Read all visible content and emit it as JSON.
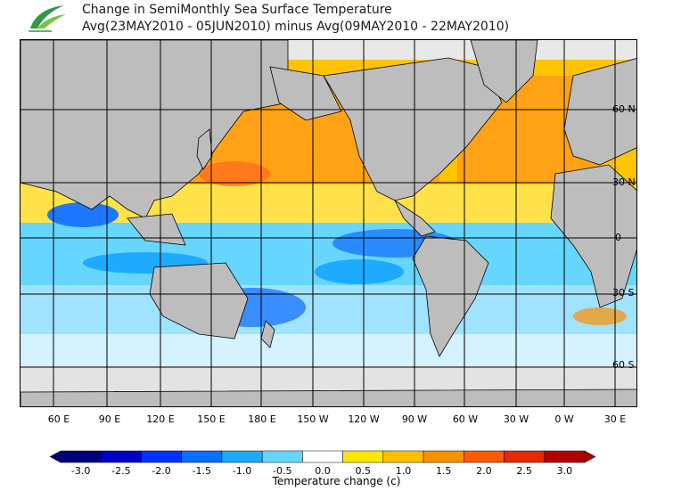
{
  "header": {
    "title": "Change in SemiMonthly Sea Surface Temperature",
    "subtitle": "Avg(23MAY2010 - 05JUN2010) minus Avg(09MAY2010 - 22MAY2010)"
  },
  "map": {
    "lon_labels": [
      "60 E",
      "90 E",
      "120 E",
      "150 E",
      "180 E",
      "150 W",
      "120 W",
      "90 W",
      "60 W",
      "30 W",
      "0 W",
      "30 E"
    ],
    "lat_labels": [
      "60 N",
      "30 N",
      "0",
      "30 S",
      "60 S"
    ],
    "colors": {
      "land": "#bdbdbd",
      "ice": "#e6e6e6",
      "grid": "#000000"
    }
  },
  "colorbar": {
    "ticks": [
      "-3.0",
      "-2.5",
      "-2.0",
      "-1.5",
      "-1.0",
      "-0.5",
      "0.0",
      "0.5",
      "1.0",
      "1.5",
      "2.0",
      "2.5",
      "3.0"
    ],
    "colors": [
      "#00007a",
      "#0000c8",
      "#0032ff",
      "#0a6eff",
      "#1eaaff",
      "#66d6ff",
      "#ffffff",
      "#ffe600",
      "#ffc000",
      "#ff9000",
      "#ff5a00",
      "#e82800",
      "#b40000"
    ],
    "label": "Temperature change  (c)"
  }
}
